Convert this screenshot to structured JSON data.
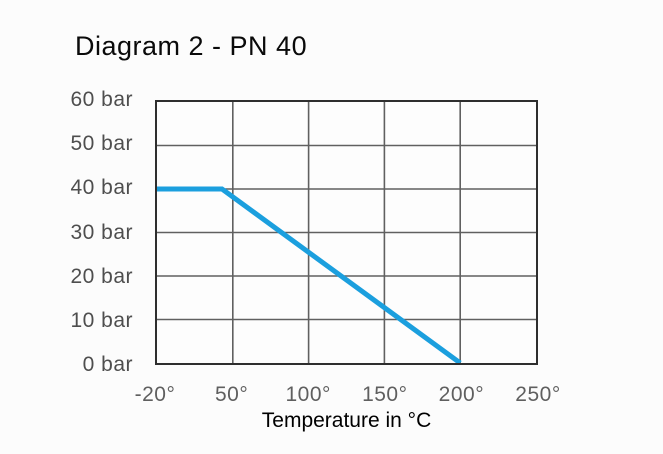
{
  "chart_data": {
    "type": "line",
    "title": "Diagram 2 - PN 40",
    "xlabel": "Temperature in °C",
    "ylabel": "",
    "x_tick_labels": [
      "-20°",
      "50°",
      "100°",
      "150°",
      "200°",
      "250°"
    ],
    "x_tick_values": [
      -20,
      50,
      100,
      150,
      200,
      250
    ],
    "y_tick_labels": [
      "60 bar",
      "50 bar",
      "40 bar",
      "30 bar",
      "20 bar",
      "10 bar",
      "0 bar"
    ],
    "y_tick_values": [
      60,
      50,
      40,
      30,
      20,
      10,
      0
    ],
    "xlim": [
      -20,
      250
    ],
    "ylim": [
      0,
      60
    ],
    "grid": true,
    "legend_position": "none",
    "series": [
      {
        "color": "#1b9fde",
        "stroke_width": 5,
        "points": [
          {
            "temp_c": -20,
            "bar": 40
          },
          {
            "temp_c": 40,
            "bar": 40
          },
          {
            "temp_c": 200,
            "bar": 0
          }
        ]
      }
    ]
  },
  "colors": {
    "background": "#fcfcfc",
    "plot_border": "#2e2e2e",
    "grid_line": "#606060",
    "series_line": "#1b9fde",
    "title_text": "#0a0a0a",
    "tick_text": "#4e4e4e",
    "axis_title_text": "#000000"
  }
}
